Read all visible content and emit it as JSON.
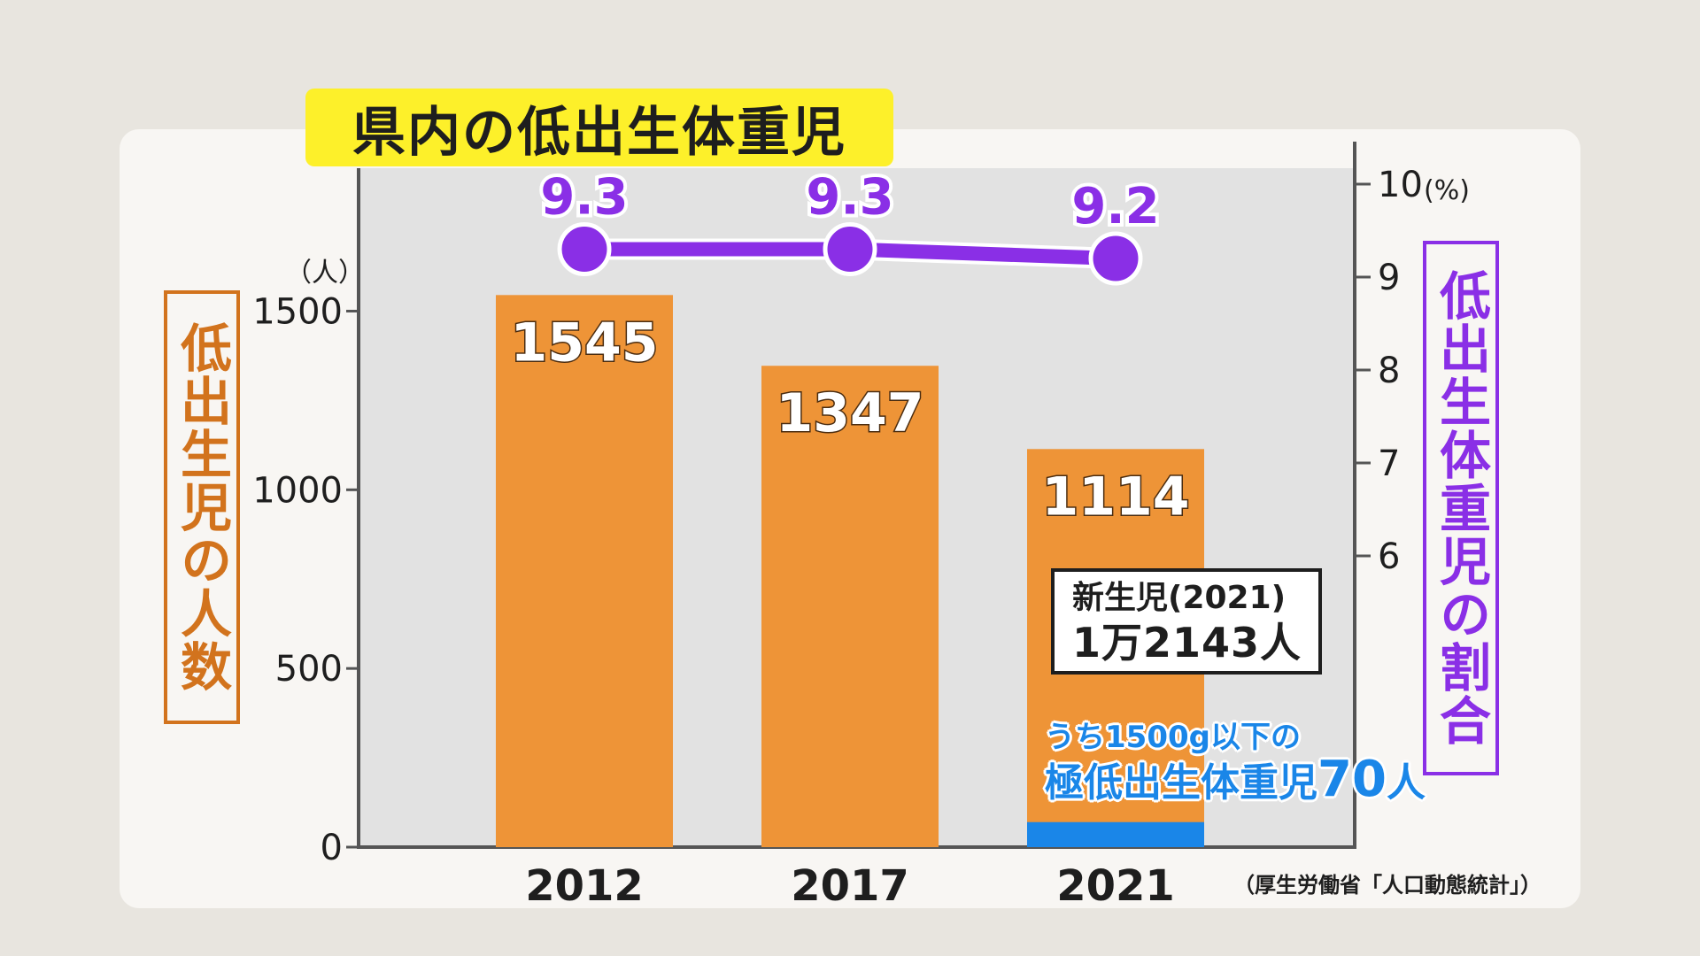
{
  "title": "県内の低出生体重児",
  "left_axis_label": "低出生児の人数",
  "right_axis_label": "低出生体重児の割合",
  "left_unit": "（人）",
  "right_unit": "(%)",
  "newborn_box": {
    "line1": "新生児(2021)",
    "line2": "1万2143人"
  },
  "vlbw_note": {
    "line1": "うち1500g以下の",
    "line2_text": "極低出生体重児",
    "line2_num": "70",
    "line2_unit": "人"
  },
  "source": "（厚生労働省「人口動態統計」）",
  "colors": {
    "bar": "#ee9437",
    "sub_bar": "#1a86e8",
    "line": "#8a2fe6",
    "plot_bg": "#e2e2e2",
    "title_bg": "#fdf02a"
  },
  "chart_data": {
    "type": "bar",
    "categories": [
      "2012",
      "2017",
      "2021"
    ],
    "series": [
      {
        "values": [
          1545,
          1347,
          1114
        ],
        "axis": "left",
        "kind": "bar"
      },
      {
        "values": [
          null,
          null,
          70
        ],
        "axis": "left",
        "kind": "bar-segment"
      },
      {
        "values": [
          9.3,
          9.3,
          9.2
        ],
        "axis": "right",
        "kind": "line"
      }
    ],
    "left_axis": {
      "ylim": [
        0,
        1900
      ],
      "ticks": [
        0,
        500,
        1000,
        1500
      ]
    },
    "right_axis": {
      "ylim": [
        4,
        10
      ],
      "ticks": [
        6,
        7,
        8,
        9,
        10
      ]
    },
    "grid": false
  }
}
